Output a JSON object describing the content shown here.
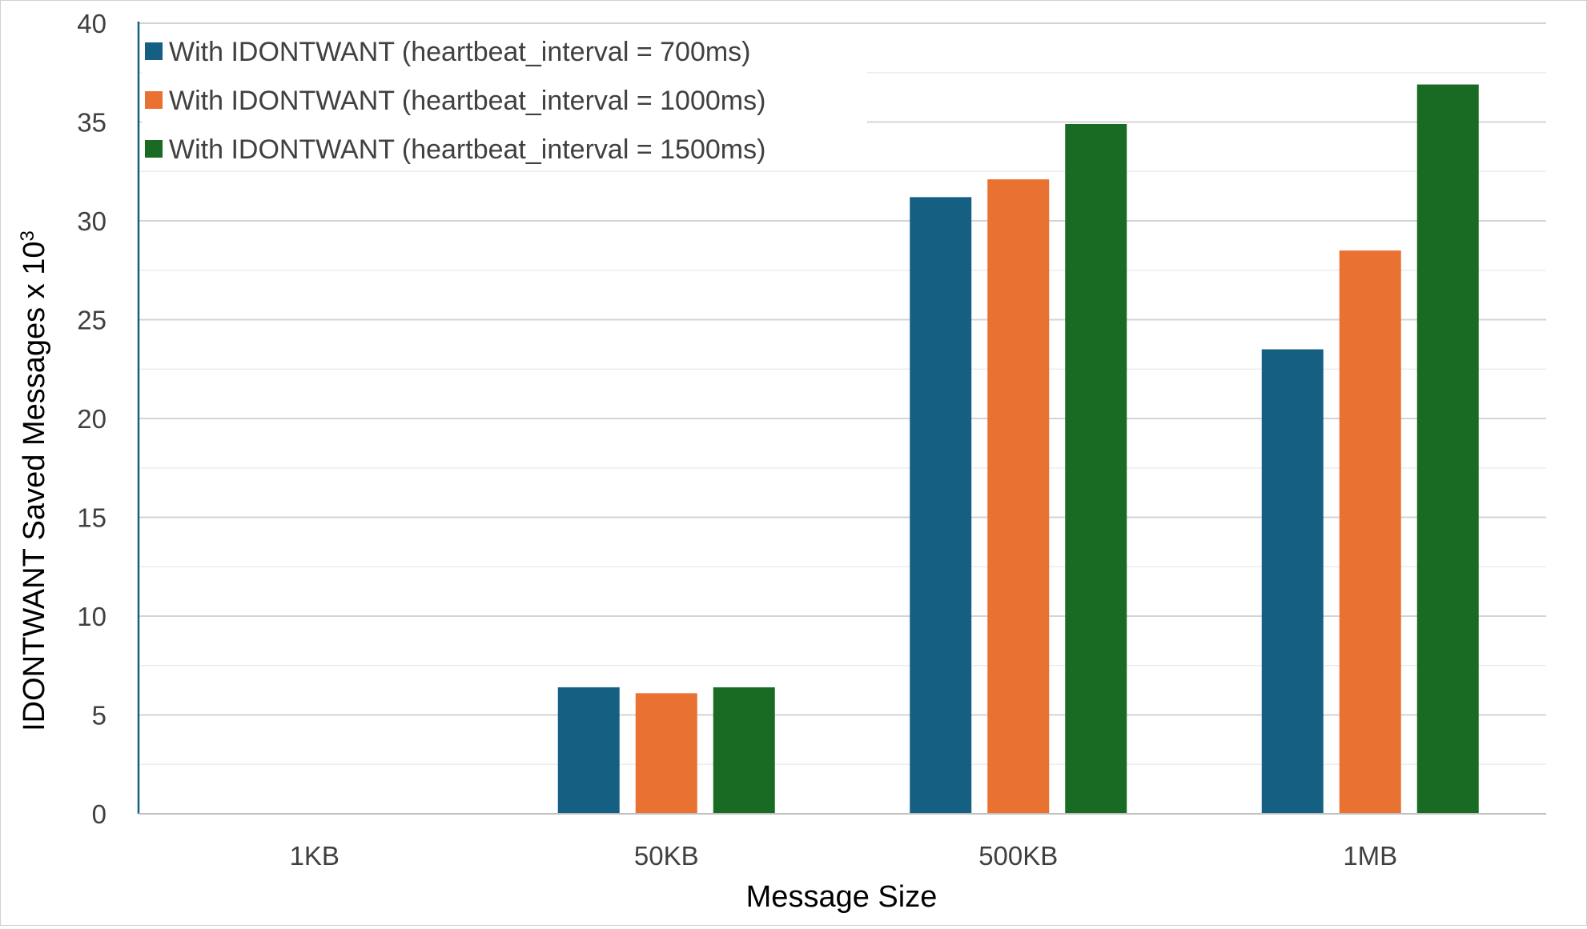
{
  "chart_data": {
    "type": "bar",
    "title": "",
    "xlabel": "Message Size",
    "ylabel": "IDONTWANT Saved Messages x 10",
    "ylabel_superscript": "3",
    "categories": [
      "1KB",
      "50KB",
      "500KB",
      "1MB"
    ],
    "ylim": [
      0,
      40
    ],
    "yticks": [
      0,
      5,
      10,
      15,
      20,
      25,
      30,
      35,
      40
    ],
    "grid": true,
    "minor_grid": true,
    "legend_position": "top-left",
    "series": [
      {
        "name": "With IDONTWANT (heartbeat_interval = 700ms)",
        "color": "#156082",
        "values": [
          0,
          6.4,
          31.2,
          23.5
        ]
      },
      {
        "name": "With IDONTWANT (heartbeat_interval = 1000ms)",
        "color": "#E97132",
        "values": [
          0,
          6.1,
          32.1,
          28.5
        ]
      },
      {
        "name": "With IDONTWANT (heartbeat_interval = 1500ms)",
        "color": "#196B24",
        "values": [
          0,
          6.4,
          34.9,
          36.9
        ]
      }
    ]
  }
}
